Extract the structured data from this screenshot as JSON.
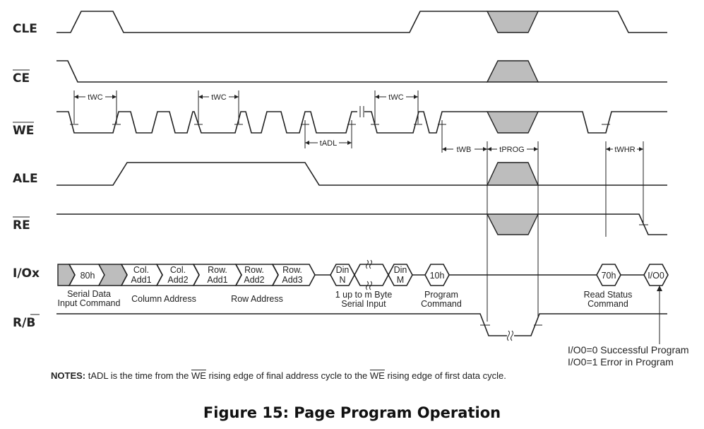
{
  "caption": "Figure 15: Page Program Operation",
  "signals": {
    "cle": "CLE",
    "ce": "CE",
    "we": "WE",
    "ale": "ALE",
    "re": "RE",
    "io": "I/Ox",
    "rb_r": "R/",
    "rb_b": "B"
  },
  "timing": {
    "twc": "tWC",
    "tadl": "tADL",
    "twb": "tWB",
    "tprog": "tPROG",
    "twhr": "tWHR"
  },
  "io_cells": {
    "cmd80": "80h",
    "col1a": "Col.",
    "col1b": "Add1",
    "col2a": "Col.",
    "col2b": "Add2",
    "row1a": "Row.",
    "row1b": "Add1",
    "row2a": "Row.",
    "row2b": "Add2",
    "row3a": "Row.",
    "row3b": "Add3",
    "dinNa": "Din",
    "dinNb": "N",
    "dinMa": "Din",
    "dinMb": "M",
    "cmd10": "10h",
    "cmd70": "70h",
    "io0": "I/O0"
  },
  "io_labels": {
    "serial1": "Serial Data",
    "serial2": "Input Command",
    "column": "Column Address",
    "row": "Row Address",
    "din1": "1 up to m Byte",
    "din2": "Serial Input",
    "prog1": "Program",
    "prog2": "Command",
    "read1": "Read Status",
    "read2": "Command"
  },
  "status": {
    "ok": "I/O0=0 Successful Program",
    "err": "I/O0=1 Error in Program"
  },
  "notes": {
    "label": "NOTES:",
    "part1": "tADL is the time from the",
    "we1": "WE",
    "part2": "rising edge of final address cycle to the",
    "we2": "WE",
    "part3": "rising edge of first data cycle."
  }
}
